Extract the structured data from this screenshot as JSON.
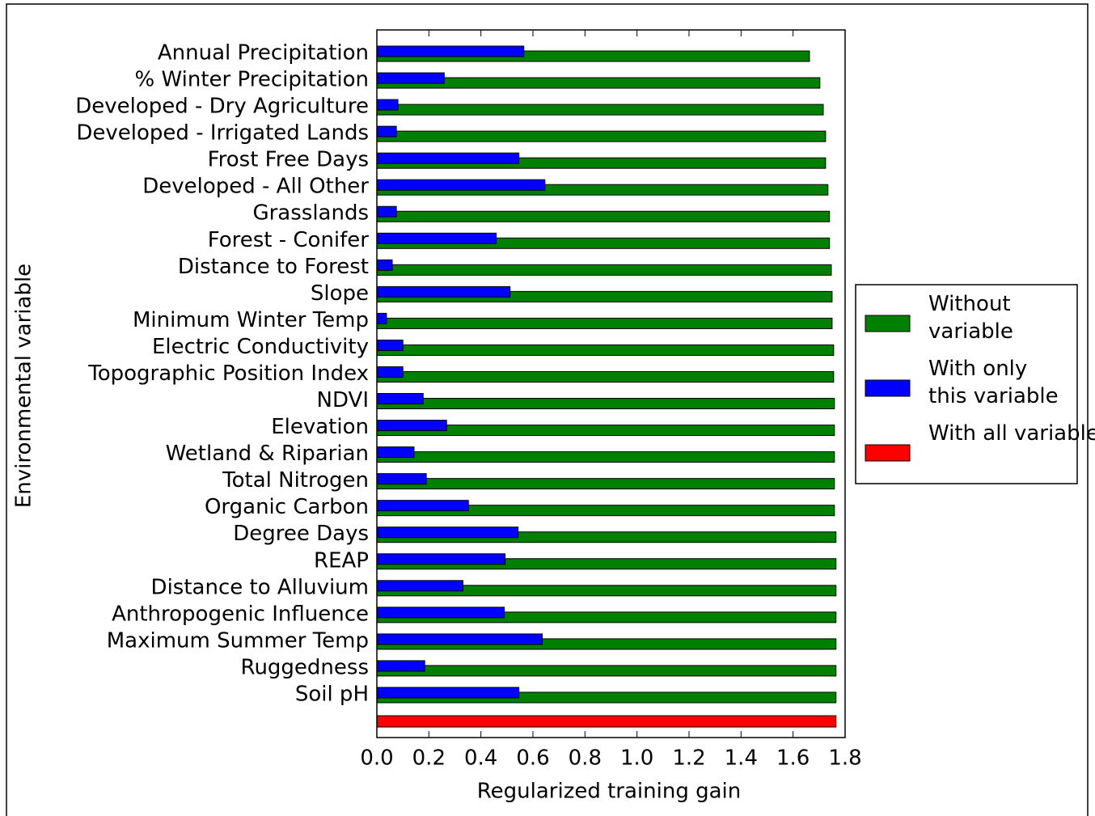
{
  "chart_data": {
    "type": "barh",
    "x_label": "Regularized training gain",
    "y_label": "Environmental variable",
    "categories": [
      "Annual Precipitation",
      "% Winter Precipitation",
      "Developed - Dry Agriculture",
      "Developed - Irrigated Lands",
      "Frost Free Days",
      "Developed - All Other",
      "Grasslands",
      "Forest - Conifer",
      "Distance to Forest",
      "Slope",
      "Minimum Winter Temp",
      "Electric Conductivity",
      "Topographic Position Index",
      "NDVI",
      "Elevation",
      "Wetland & Riparian",
      "Total Nitrogen",
      "Organic Carbon",
      "Degree Days",
      "REAP",
      "Distance to Alluvium",
      "Anthropogenic Influence",
      "Maximum Summer Temp",
      "Ruggedness",
      "Soil pH",
      null
    ],
    "series": [
      {
        "name": "Without variable",
        "color": "#008000",
        "values": [
          1.663,
          1.703,
          1.716,
          1.725,
          1.725,
          1.734,
          1.74,
          1.74,
          1.747,
          1.75,
          1.75,
          1.756,
          1.756,
          1.759,
          1.759,
          1.759,
          1.759,
          1.759,
          1.765,
          1.765,
          1.765,
          1.765,
          1.765,
          1.765,
          1.765,
          null
        ]
      },
      {
        "name": "With only this variable",
        "color": "#0000ff",
        "values": [
          0.565,
          0.259,
          0.081,
          0.075,
          0.546,
          0.646,
          0.075,
          0.459,
          0.059,
          0.512,
          0.037,
          0.1,
          0.1,
          0.178,
          0.268,
          0.143,
          0.19,
          0.352,
          0.543,
          0.493,
          0.331,
          0.49,
          0.636,
          0.184,
          0.546,
          null
        ]
      },
      {
        "name": "With all variables",
        "color": "#ff0000",
        "values": [
          null,
          null,
          null,
          null,
          null,
          null,
          null,
          null,
          null,
          null,
          null,
          null,
          null,
          null,
          null,
          null,
          null,
          null,
          null,
          null,
          null,
          null,
          null,
          null,
          null,
          1.765
        ]
      }
    ],
    "xlim": [
      0,
      1.8
    ],
    "xticks": [
      {
        "value": 0,
        "label": "0.0"
      },
      {
        "value": 0.2,
        "label": "0.2"
      },
      {
        "value": 0.4,
        "label": "0.4"
      },
      {
        "value": 0.6,
        "label": "0.6"
      },
      {
        "value": 0.8,
        "label": "0.8"
      },
      {
        "value": 1,
        "label": "1.0"
      },
      {
        "value": 1.2,
        "label": "1.2"
      },
      {
        "value": 1.4,
        "label": "1.4"
      },
      {
        "value": 1.6,
        "label": "1.6"
      },
      {
        "value": 1.8,
        "label": "1.8"
      }
    ],
    "legend": "right"
  }
}
